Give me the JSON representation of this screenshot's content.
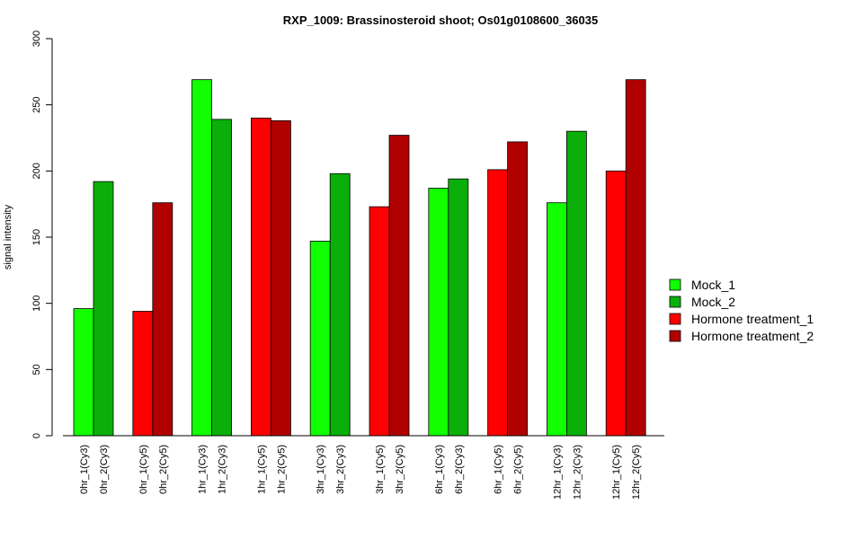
{
  "chart_data": {
    "type": "bar",
    "title": "RXP_1009: Brassinosteroid shoot; Os01g0108600_36035",
    "ylabel": "signal intensity",
    "xlabel": "",
    "ylim": [
      0,
      300
    ],
    "yticks": [
      0,
      50,
      100,
      150,
      200,
      250,
      300
    ],
    "grid": false,
    "legend_position": "right",
    "categories": [
      "0hr_1(Cy3)",
      "0hr_2(Cy3)",
      "0hr_1(Cy5)",
      "0hr_2(Cy5)",
      "1hr_1(Cy3)",
      "1hr_2(Cy3)",
      "1hr_1(Cy5)",
      "1hr_2(Cy5)",
      "3hr_1(Cy3)",
      "3hr_2(Cy3)",
      "3hr_1(Cy5)",
      "3hr_2(Cy5)",
      "6hr_1(Cy3)",
      "6hr_2(Cy3)",
      "6hr_1(Cy5)",
      "6hr_2(Cy5)",
      "12hr_1(Cy3)",
      "12hr_2(Cy3)",
      "12hr_1(Cy5)",
      "12hr_2(Cy5)"
    ],
    "values": [
      96,
      192,
      94,
      176,
      269,
      239,
      240,
      238,
      147,
      198,
      173,
      227,
      187,
      194,
      201,
      222,
      176,
      230,
      200,
      269
    ],
    "bar_series": [
      0,
      1,
      2,
      3,
      0,
      1,
      2,
      3,
      0,
      1,
      2,
      3,
      0,
      1,
      2,
      3,
      0,
      1,
      2,
      3
    ],
    "series": [
      {
        "name": "Mock_1",
        "color": "#11ff00"
      },
      {
        "name": "Mock_2",
        "color": "#0aaf0a"
      },
      {
        "name": "Hormone treatment_1",
        "color": "#ff0000"
      },
      {
        "name": "Hormone treatment_2",
        "color": "#b00000"
      }
    ]
  }
}
